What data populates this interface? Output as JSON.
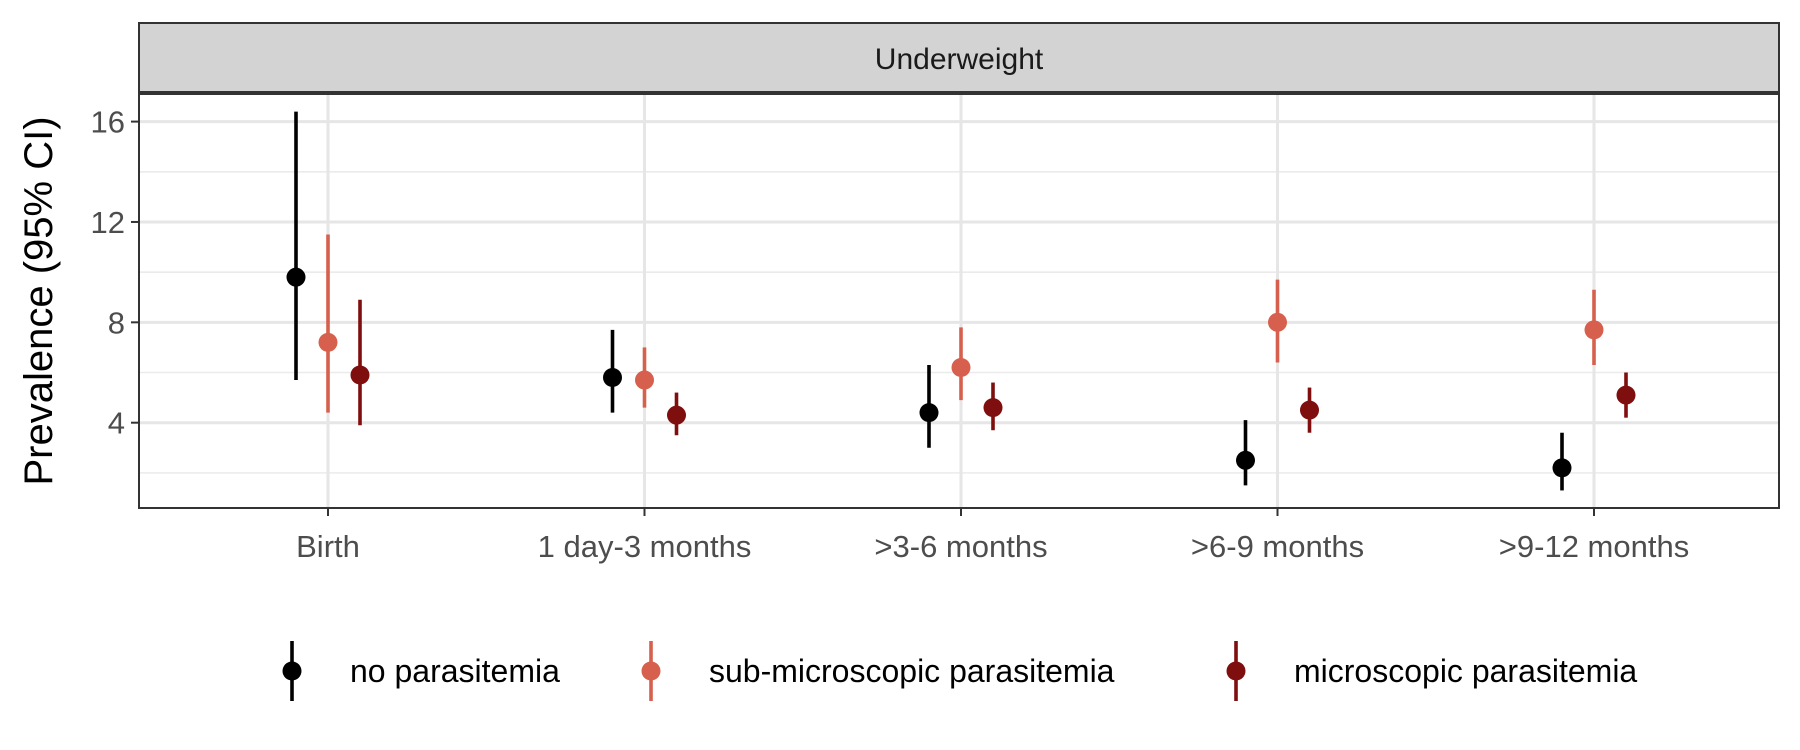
{
  "chart_data": {
    "type": "scatter",
    "facet_label": "Underweight",
    "ylabel": "Prevalence (95% CI)",
    "xlabel": "",
    "categories": [
      "Birth",
      "1 day-3 months",
      ">3-6 months",
      ">6-9 months",
      ">9-12 months"
    ],
    "y_ticks": [
      4,
      8,
      12,
      16
    ],
    "ylim": [
      0.6,
      17.1
    ],
    "grid": true,
    "legend_position": "bottom",
    "series": [
      {
        "name": "no parasitemia",
        "color": "#000000",
        "values": [
          9.8,
          5.8,
          4.4,
          2.5,
          2.2
        ],
        "lower": [
          5.7,
          4.4,
          3.0,
          1.5,
          1.3
        ],
        "upper": [
          16.4,
          7.7,
          6.3,
          4.1,
          3.6
        ]
      },
      {
        "name": "sub-microscopic parasitemia",
        "color": "#d6604d",
        "values": [
          7.2,
          5.7,
          6.2,
          8.0,
          7.7
        ],
        "lower": [
          4.4,
          4.6,
          4.9,
          6.4,
          6.3
        ],
        "upper": [
          11.5,
          7.0,
          7.8,
          9.7,
          9.3
        ]
      },
      {
        "name": "microscopic parasitemia",
        "color": "#7f0e0e",
        "values": [
          5.9,
          4.3,
          4.6,
          4.5,
          5.1
        ],
        "lower": [
          3.9,
          3.5,
          3.7,
          3.6,
          4.2
        ],
        "upper": [
          8.9,
          5.2,
          5.6,
          5.4,
          6.0
        ]
      }
    ]
  }
}
